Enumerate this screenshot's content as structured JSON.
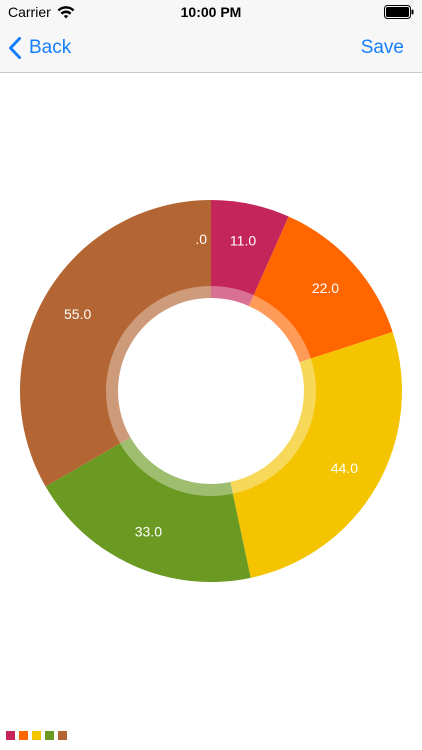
{
  "status_bar": {
    "carrier": "Carrier",
    "time": "10:00 PM",
    "icons": [
      "wifi-icon",
      "battery-icon"
    ]
  },
  "nav": {
    "back_label": "Back",
    "save_label": "Save",
    "back_icon": "chevron-left-icon",
    "tint_color": "#147efb"
  },
  "chart_data": {
    "type": "pie",
    "style": "donut",
    "categories": [
      "",
      "",
      "",
      "",
      "",
      ""
    ],
    "values": [
      0,
      11,
      22,
      44,
      33,
      55
    ],
    "labels": [
      ".0",
      "11.0",
      "22.0",
      "44.0",
      "33.0",
      "55.0"
    ],
    "colors": [
      "#e0e0e0",
      "#c4255a",
      "#ff6600",
      "#f5c400",
      "#6b9a22",
      "#b36633"
    ],
    "title": "",
    "legend": "bottom-left",
    "legend_colors": [
      "#c4255a",
      "#ff6600",
      "#f5c400",
      "#6b9a22",
      "#b36633"
    ]
  }
}
